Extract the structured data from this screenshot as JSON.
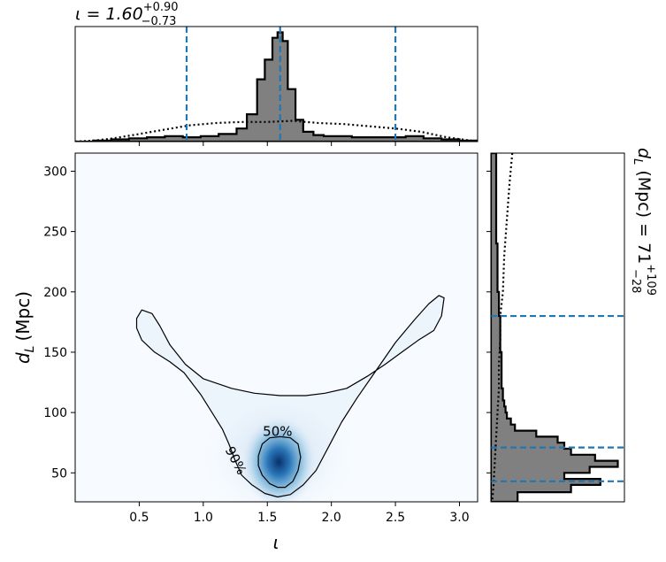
{
  "chart_data": {
    "type": "corner",
    "main": {
      "type": "heatmap",
      "xlabel": "ι",
      "ylabel_base": "d",
      "ylabel_sub": "L",
      "ylabel_unit": "(Mpc)",
      "xlim": [
        0.0,
        3.14159
      ],
      "ylim": [
        26,
        315
      ],
      "xticks": [
        0.5,
        1.0,
        1.5,
        2.0,
        2.5,
        3.0
      ],
      "xtick_labels": [
        "0.5",
        "1.0",
        "1.5",
        "2.0",
        "2.5",
        "3.0"
      ],
      "yticks": [
        50,
        100,
        150,
        200,
        250,
        300
      ],
      "ytick_labels": [
        "50",
        "100",
        "150",
        "200",
        "250",
        "300"
      ],
      "density_peak": {
        "x": 1.59,
        "y": 59
      },
      "colormap": "Blues",
      "contours": [
        {
          "label": "50%",
          "label_at": {
            "x": 1.58,
            "y": 84
          },
          "points": [
            [
              1.43,
              56
            ],
            [
              1.46,
              48
            ],
            [
              1.52,
              41
            ],
            [
              1.58,
              38
            ],
            [
              1.64,
              38
            ],
            [
              1.7,
              43
            ],
            [
              1.74,
              52
            ],
            [
              1.76,
              63
            ],
            [
              1.74,
              74
            ],
            [
              1.68,
              79
            ],
            [
              1.6,
              80
            ],
            [
              1.52,
              79
            ],
            [
              1.46,
              74
            ],
            [
              1.43,
              64
            ]
          ]
        },
        {
          "label": "90%",
          "label_at": {
            "x": 1.25,
            "y": 60
          },
          "points": [
            [
              0.48,
              170
            ],
            [
              0.52,
              160
            ],
            [
              0.62,
              150
            ],
            [
              0.74,
              142
            ],
            [
              0.85,
              133
            ],
            [
              0.98,
              115
            ],
            [
              1.08,
              98
            ],
            [
              1.15,
              86
            ],
            [
              1.2,
              74
            ],
            [
              1.25,
              60
            ],
            [
              1.3,
              48
            ],
            [
              1.38,
              40
            ],
            [
              1.48,
              33
            ],
            [
              1.58,
              30
            ],
            [
              1.68,
              32
            ],
            [
              1.78,
              40
            ],
            [
              1.88,
              52
            ],
            [
              1.98,
              72
            ],
            [
              2.08,
              92
            ],
            [
              2.2,
              112
            ],
            [
              2.35,
              135
            ],
            [
              2.5,
              158
            ],
            [
              2.65,
              177
            ],
            [
              2.76,
              190
            ],
            [
              2.84,
              197
            ],
            [
              2.88,
              195
            ],
            [
              2.86,
              180
            ],
            [
              2.8,
              168
            ],
            [
              2.68,
              160
            ],
            [
              2.55,
              150
            ],
            [
              2.42,
              140
            ],
            [
              2.28,
              130
            ],
            [
              2.12,
              120
            ],
            [
              1.95,
              116
            ],
            [
              1.8,
              114
            ],
            [
              1.6,
              114
            ],
            [
              1.4,
              116
            ],
            [
              1.22,
              120
            ],
            [
              1.0,
              128
            ],
            [
              0.86,
              140
            ],
            [
              0.74,
              156
            ],
            [
              0.66,
              172
            ],
            [
              0.6,
              182
            ],
            [
              0.52,
              185
            ],
            [
              0.48,
              178
            ]
          ]
        }
      ]
    },
    "top_marginal": {
      "title_base": "ι = 1.60",
      "title_sup": "+0.90",
      "title_sub": "−0.73",
      "quantile_lines": [
        0.87,
        1.6,
        2.5
      ],
      "bin_edges": [
        0.0,
        0.14,
        0.28,
        0.42,
        0.56,
        0.7,
        0.84,
        0.98,
        1.12,
        1.26,
        1.34,
        1.42,
        1.48,
        1.54,
        1.58,
        1.62,
        1.66,
        1.72,
        1.78,
        1.86,
        1.94,
        2.04,
        2.16,
        2.3,
        2.44,
        2.58,
        2.72,
        2.86,
        3.0,
        3.14159
      ],
      "counts": [
        0.0,
        0.01,
        0.02,
        0.03,
        0.04,
        0.05,
        0.04,
        0.05,
        0.07,
        0.12,
        0.25,
        0.57,
        0.75,
        0.95,
        1.0,
        0.92,
        0.48,
        0.2,
        0.09,
        0.06,
        0.05,
        0.05,
        0.04,
        0.04,
        0.04,
        0.05,
        0.03,
        0.02,
        0.01
      ],
      "prior_points": [
        [
          0.0,
          0.0
        ],
        [
          0.15,
          0.01
        ],
        [
          0.3,
          0.03
        ],
        [
          0.5,
          0.07
        ],
        [
          0.7,
          0.11
        ],
        [
          0.9,
          0.15
        ],
        [
          1.1,
          0.17
        ],
        [
          1.3,
          0.18
        ],
        [
          1.5,
          0.18
        ],
        [
          1.7,
          0.19
        ],
        [
          1.9,
          0.17
        ],
        [
          2.1,
          0.16
        ],
        [
          2.3,
          0.14
        ],
        [
          2.5,
          0.12
        ],
        [
          2.7,
          0.09
        ],
        [
          2.9,
          0.04
        ],
        [
          3.14,
          0.0
        ]
      ]
    },
    "right_marginal": {
      "title_base": "d",
      "title_sub_var": "L",
      "title_unit": " (Mpc) = 71",
      "title_sup": "+109",
      "title_sub": "−28",
      "quantile_lines": [
        43,
        71,
        180
      ],
      "bin_edges": [
        26,
        34,
        40,
        45,
        50,
        55,
        60,
        65,
        70,
        75,
        80,
        85,
        90,
        95,
        100,
        105,
        110,
        120,
        130,
        140,
        150,
        165,
        180,
        200,
        240,
        315
      ],
      "counts": [
        0.2,
        0.6,
        0.82,
        0.55,
        0.74,
        0.95,
        0.78,
        0.6,
        0.55,
        0.5,
        0.34,
        0.18,
        0.15,
        0.12,
        0.11,
        0.1,
        0.09,
        0.08,
        0.08,
        0.08,
        0.07,
        0.07,
        0.06,
        0.05,
        0.04
      ],
      "prior_points": [
        [
          315,
          0.16
        ],
        [
          290,
          0.14
        ],
        [
          260,
          0.12
        ],
        [
          230,
          0.1
        ],
        [
          200,
          0.09
        ],
        [
          180,
          0.07
        ],
        [
          160,
          0.07
        ],
        [
          140,
          0.06
        ],
        [
          120,
          0.06
        ],
        [
          100,
          0.05
        ],
        [
          80,
          0.04
        ],
        [
          60,
          0.03
        ],
        [
          40,
          0.02
        ],
        [
          26,
          0.01
        ]
      ]
    },
    "colors": {
      "hist_fill": "#808080",
      "quantile_line": "#1f77b4",
      "heat_max": "#08306b"
    }
  }
}
